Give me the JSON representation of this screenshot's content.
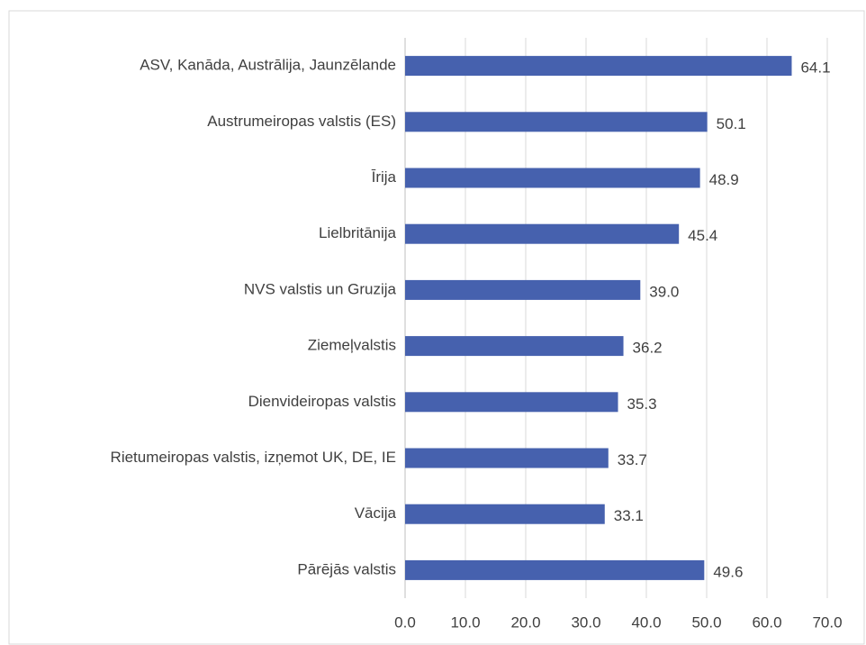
{
  "chart_data": {
    "type": "bar",
    "orientation": "horizontal",
    "categories": [
      "ASV, Kanāda, Austrālija, Jaunzēlande",
      "Austrumeiropas valstis (ES)",
      "Īrija",
      "Lielbritānija",
      "NVS valstis un Gruzija",
      "Ziemeļvalstis",
      "Dienvideiropas valstis",
      "Rietumeiropas valstis, izņemot UK, DE, IE",
      "Vācija",
      "Pārējās valstis"
    ],
    "values": [
      64.1,
      50.1,
      48.9,
      45.4,
      39.0,
      36.2,
      35.3,
      33.7,
      33.1,
      49.6
    ],
    "value_labels": [
      "64.1",
      "50.1",
      "48.9",
      "45.4",
      "39.0",
      "36.2",
      "35.3",
      "33.7",
      "33.1",
      "49.6"
    ],
    "color": "#4661ae",
    "xlim": [
      0,
      70
    ],
    "xticks": [
      {
        "value": 0,
        "label": "0.0"
      },
      {
        "value": 10,
        "label": "10.0"
      },
      {
        "value": 20,
        "label": "20.0"
      },
      {
        "value": 30,
        "label": "30.0"
      },
      {
        "value": 40,
        "label": "40.0"
      },
      {
        "value": 50,
        "label": "50.0"
      },
      {
        "value": 60,
        "label": "60.0"
      },
      {
        "value": 70,
        "label": "70.0"
      }
    ],
    "grid": true
  }
}
